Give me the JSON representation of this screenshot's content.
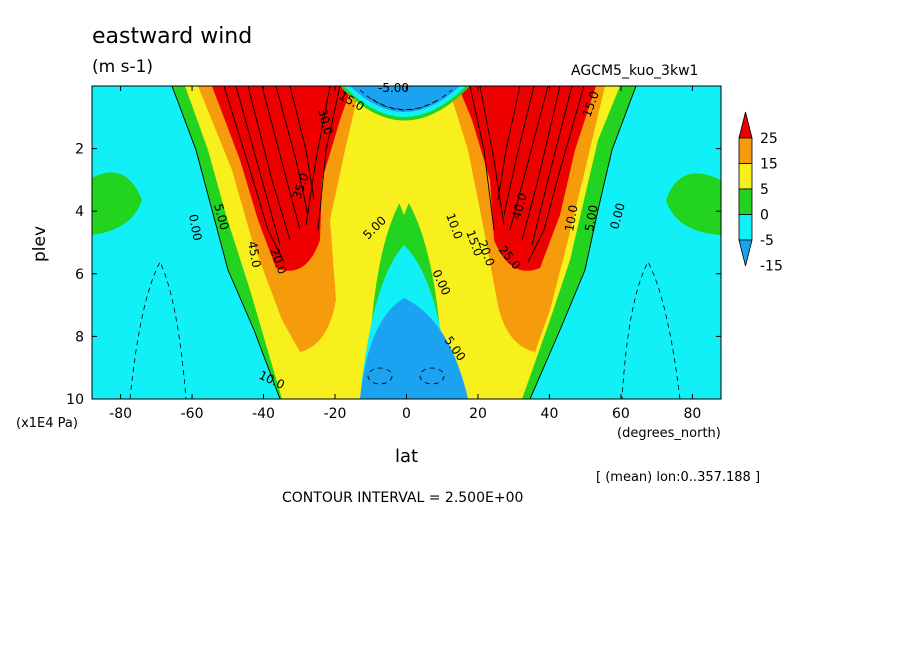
{
  "chart_data": {
    "type": "heatmap",
    "subtype": "filled-contour",
    "title": "eastward wind",
    "units": "(m s-1)",
    "run_name": "AGCM5_kuo_3kw1",
    "xlabel": "lat",
    "x_unit": "(degrees_north)",
    "ylabel": "plev",
    "y_unit": "(x1E4 Pa)",
    "xlim": [
      -88,
      88
    ],
    "ylim": [
      10,
      0
    ],
    "x_ticks": [
      -80,
      -60,
      -40,
      -20,
      0,
      20,
      40,
      60,
      80
    ],
    "y_ticks": [
      2,
      4,
      6,
      8,
      10
    ],
    "contour_interval_text": "CONTOUR INTERVAL = 2.500E+00",
    "mean_note": "[ (mean) lon:0..357.188 ]",
    "colorbar": {
      "labels": [
        "25",
        "15",
        "5",
        "0",
        "-5",
        "-15"
      ],
      "colors": [
        "#ee0000",
        "#f59b0c",
        "#f7f01d",
        "#22d41f",
        "#10f0f6",
        "#1ba3f2"
      ]
    },
    "contour_labels": [
      "0.00",
      "5.00",
      "10.0",
      "15.0",
      "20.0",
      "25.0",
      "30.0",
      "35.0",
      "40.0",
      "45.0",
      "-5.00"
    ],
    "regions": [
      {
        "level_min": 25,
        "color": "#ee0000",
        "desc": "subtropical jet cores near lat ±32, plev 1–6"
      },
      {
        "level_min": 15,
        "level_max": 25,
        "color": "#f59b0c",
        "desc": "jet flanks, plev to ~8.5"
      },
      {
        "level_min": 5,
        "level_max": 15,
        "color": "#f7f01d"
      },
      {
        "level_min": 0,
        "level_max": 5,
        "color": "#22d41f"
      },
      {
        "level_min": -5,
        "level_max": 0,
        "color": "#10f0f6",
        "desc": "high latitudes and low-level tropics"
      },
      {
        "level_max": -5,
        "color": "#1ba3f2",
        "desc": "tropical easterlies near surface and at top over equator"
      }
    ]
  }
}
